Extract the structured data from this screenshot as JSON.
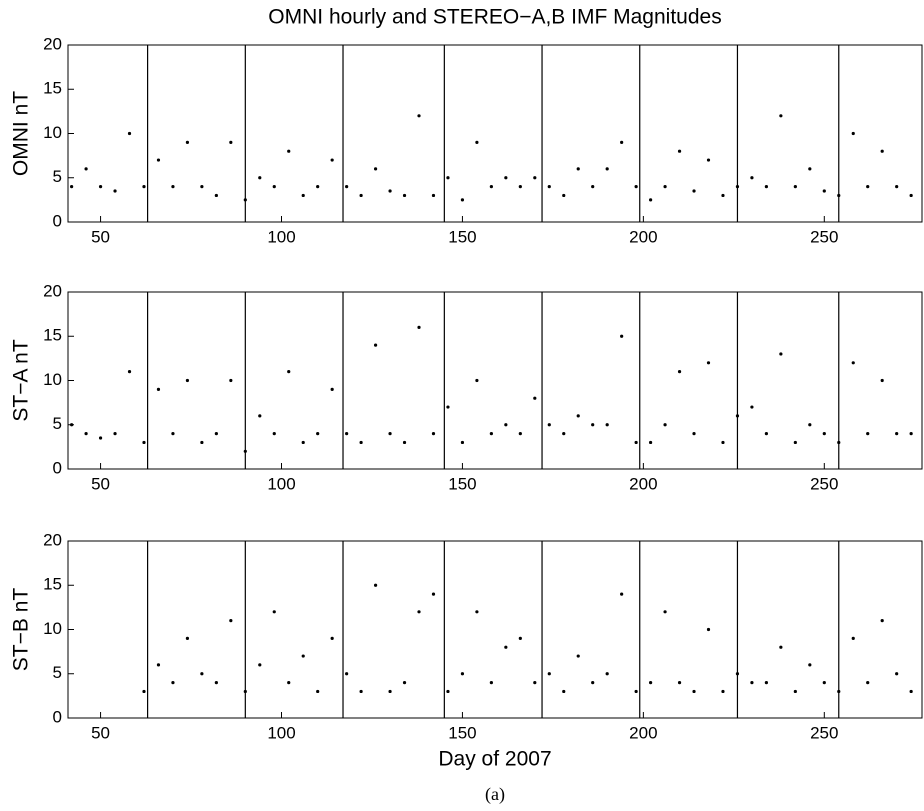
{
  "caption": "(a)",
  "chart_data": [
    {
      "type": "scatter",
      "title": "OMNI hourly and STEREO−A,B IMF Magnitudes",
      "ylabel": "OMNI nT",
      "color": "#000000",
      "x": [
        42,
        46,
        50,
        54,
        58,
        62,
        66,
        70,
        74,
        78,
        82,
        86,
        90,
        94,
        98,
        102,
        106,
        110,
        114,
        118,
        122,
        126,
        130,
        134,
        138,
        142,
        146,
        150,
        154,
        158,
        162,
        166,
        170,
        174,
        178,
        182,
        186,
        190,
        194,
        198,
        202,
        206,
        210,
        214,
        218,
        222,
        226,
        230,
        234,
        238,
        242,
        246,
        250,
        254,
        258,
        262,
        266,
        270,
        274
      ],
      "values": [
        4,
        6,
        4,
        3.5,
        10,
        4,
        7,
        4,
        9,
        4,
        3,
        9,
        2.5,
        5,
        4,
        8,
        3,
        4,
        7,
        4,
        3,
        6,
        3.5,
        3,
        12,
        3,
        5,
        2.5,
        9,
        4,
        5,
        4,
        5,
        4,
        3,
        6,
        4,
        6,
        9,
        4,
        2.5,
        4,
        8,
        3.5,
        7,
        3,
        4,
        5,
        4,
        12,
        4,
        6,
        3.5,
        3,
        10,
        4,
        8,
        4,
        3
      ],
      "xlim": [
        41,
        277
      ],
      "ylim": [
        0,
        20
      ],
      "xticks": [
        50,
        100,
        150,
        200,
        250
      ],
      "yticks": [
        0,
        5,
        10,
        15,
        20
      ],
      "vlines": [
        63,
        90,
        117,
        145,
        172,
        199,
        226,
        254
      ]
    },
    {
      "type": "scatter",
      "ylabel": "ST−A nT",
      "color": "#000000",
      "x": [
        42,
        46,
        50,
        54,
        58,
        62,
        66,
        70,
        74,
        78,
        82,
        86,
        90,
        94,
        98,
        102,
        106,
        110,
        114,
        118,
        122,
        126,
        130,
        134,
        138,
        142,
        146,
        150,
        154,
        158,
        162,
        166,
        170,
        174,
        178,
        182,
        186,
        190,
        194,
        198,
        202,
        206,
        210,
        214,
        218,
        222,
        226,
        230,
        234,
        238,
        242,
        246,
        250,
        254,
        258,
        262,
        266,
        270,
        274
      ],
      "values": [
        5,
        4,
        3.5,
        4,
        11,
        3,
        9,
        4,
        10,
        3,
        4,
        10,
        2,
        6,
        4,
        11,
        3,
        4,
        9,
        4,
        3,
        14,
        4,
        3,
        16,
        4,
        7,
        3,
        10,
        4,
        5,
        4,
        8,
        5,
        4,
        6,
        5,
        5,
        15,
        3,
        3,
        5,
        11,
        4,
        12,
        3,
        6,
        7,
        4,
        13,
        3,
        5,
        4,
        3,
        12,
        4,
        10,
        4,
        4
      ],
      "xlim": [
        41,
        277
      ],
      "ylim": [
        0,
        20
      ],
      "xticks": [
        50,
        100,
        150,
        200,
        250
      ],
      "yticks": [
        0,
        5,
        10,
        15,
        20
      ],
      "vlines": [
        63,
        90,
        117,
        145,
        172,
        199,
        226,
        254
      ]
    },
    {
      "type": "scatter",
      "ylabel": "ST−B nT",
      "xlabel": "Day of 2007",
      "color": "#000000",
      "x": [
        62,
        66,
        70,
        74,
        78,
        82,
        86,
        90,
        94,
        98,
        102,
        106,
        110,
        114,
        118,
        122,
        126,
        130,
        134,
        138,
        142,
        146,
        150,
        154,
        158,
        162,
        166,
        170,
        174,
        178,
        182,
        186,
        190,
        194,
        198,
        202,
        206,
        210,
        214,
        218,
        222,
        226,
        230,
        234,
        238,
        242,
        246,
        250,
        254,
        258,
        262,
        266,
        270,
        274
      ],
      "values": [
        3,
        6,
        4,
        9,
        5,
        4,
        11,
        3,
        6,
        12,
        4,
        7,
        3,
        9,
        5,
        3,
        15,
        3,
        4,
        12,
        14,
        3,
        5,
        12,
        4,
        8,
        9,
        4,
        5,
        3,
        7,
        4,
        5,
        14,
        3,
        4,
        12,
        4,
        3,
        10,
        3,
        5,
        4,
        4,
        8,
        3,
        6,
        4,
        3,
        9,
        4,
        11,
        5,
        3
      ],
      "xlim": [
        41,
        277
      ],
      "ylim": [
        0,
        20
      ],
      "xticks": [
        50,
        100,
        150,
        200,
        250
      ],
      "yticks": [
        0,
        5,
        10,
        15,
        20
      ],
      "vlines": [
        63,
        90,
        117,
        145,
        172,
        199,
        226,
        254
      ]
    }
  ]
}
